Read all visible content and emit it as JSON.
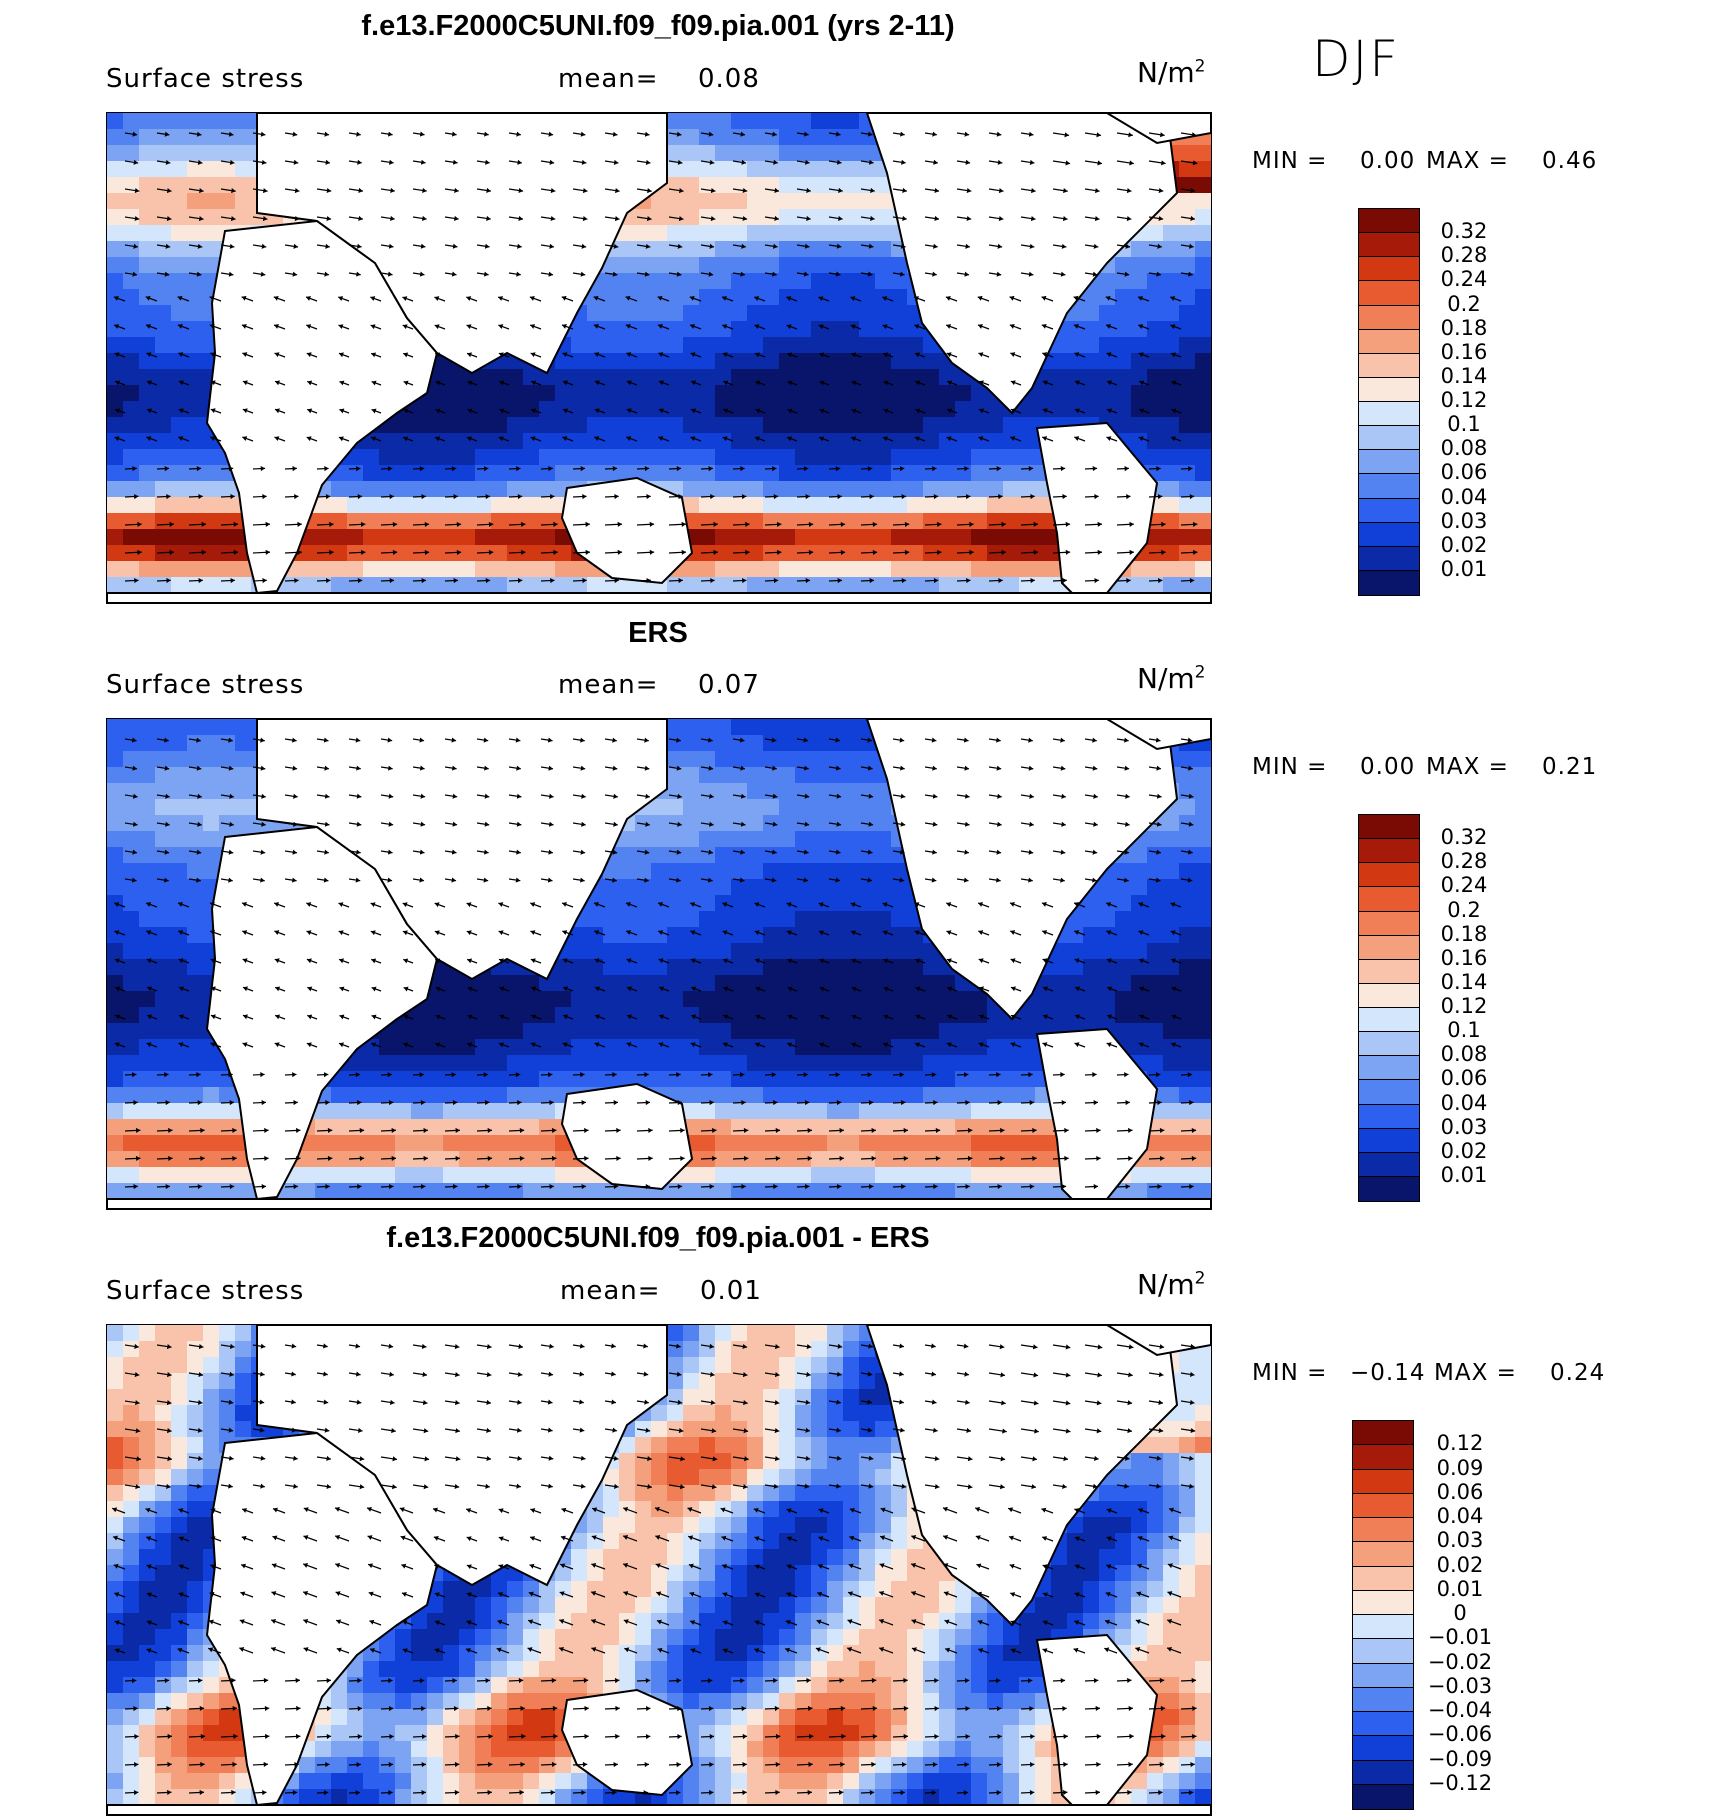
{
  "season": "DJF",
  "colors": {
    "land": "#ffffff",
    "coast": "#000000",
    "seq_scale": [
      "#08156b",
      "#0b2aa8",
      "#1040d8",
      "#2e60f0",
      "#5383f0",
      "#7da4f2",
      "#a9c6f6",
      "#d3e6fb",
      "#fbe8dc",
      "#f8c3aa",
      "#f4a07c",
      "#f07f57",
      "#e85a2f",
      "#d23812",
      "#a51a08",
      "#7a0a04"
    ],
    "div_scale": [
      "#08156b",
      "#0b2aa8",
      "#1040d8",
      "#2e60f0",
      "#5383f0",
      "#7da4f2",
      "#a9c6f6",
      "#d3e6fb",
      "#fbe8dc",
      "#f8c3aa",
      "#f4a07c",
      "#f07f57",
      "#e85a2f",
      "#d23812",
      "#a51a08",
      "#7a0a04"
    ]
  },
  "panels": [
    {
      "title": "f.e13.F2000C5UNI.f09_f09.pia.001 (yrs 2-11)",
      "variable": "Surface stress",
      "mean_label": "mean=",
      "mean_value": "0.08",
      "units": "N/m",
      "units_exp": "2",
      "min_label": "MIN =",
      "min_value": "0.00",
      "max_label": "MAX =",
      "max_value": "0.46",
      "scale": "seq",
      "colorbar_ticks": [
        "0.32",
        "0.28",
        "0.24",
        "0.2",
        "0.18",
        "0.16",
        "0.14",
        "0.12",
        "0.1",
        "0.08",
        "0.06",
        "0.04",
        "0.03",
        "0.02",
        "0.01"
      ]
    },
    {
      "title": "ERS",
      "variable": "Surface stress",
      "mean_label": "mean=",
      "mean_value": "0.07",
      "units": "N/m",
      "units_exp": "2",
      "min_label": "MIN =",
      "min_value": "0.00",
      "max_label": "MAX =",
      "max_value": "0.21",
      "scale": "seq",
      "colorbar_ticks": [
        "0.32",
        "0.28",
        "0.24",
        "0.2",
        "0.18",
        "0.16",
        "0.14",
        "0.12",
        "0.1",
        "0.08",
        "0.06",
        "0.04",
        "0.03",
        "0.02",
        "0.01"
      ]
    },
    {
      "title": "f.e13.F2000C5UNI.f09_f09.pia.001 - ERS",
      "variable": "Surface stress",
      "mean_label": "mean=",
      "mean_value": "0.01",
      "units": "N/m",
      "units_exp": "2",
      "min_label": "MIN =",
      "min_value": "−0.14",
      "max_label": "MAX =",
      "max_value": "0.24",
      "scale": "div",
      "colorbar_ticks": [
        "0.12",
        "0.09",
        "0.06",
        "0.04",
        "0.03",
        "0.02",
        "0.01",
        "0",
        "−0.01",
        "−0.02",
        "−0.03",
        "−0.04",
        "−0.06",
        "−0.09",
        "−0.12"
      ]
    }
  ]
}
